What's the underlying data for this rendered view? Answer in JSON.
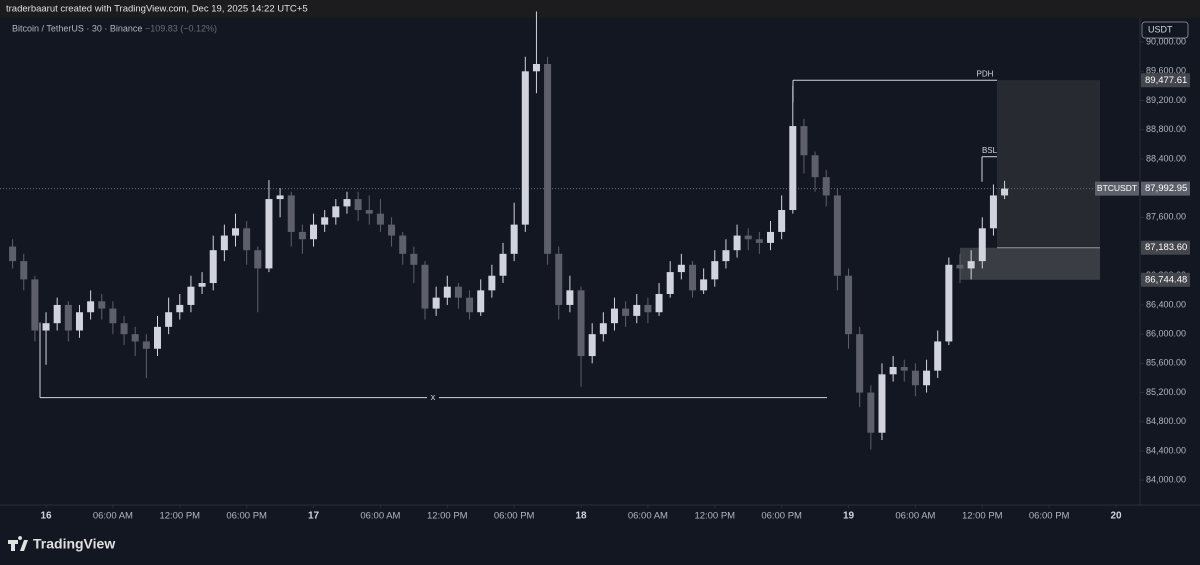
{
  "header": {
    "credit": "traderbaarut created with TradingView.com, Dec 19, 2025 14:22 UTC+5"
  },
  "chart_data": {
    "type": "candlestick",
    "title": "Bitcoin / TetherUS · 30 · Binance",
    "change": "−109.83 (−0.12%)",
    "currency": "USDT",
    "symbol": "BTCUSDT",
    "x": [
      -3,
      -2,
      -1,
      0,
      1,
      2,
      3,
      4,
      5,
      6,
      7,
      8,
      9,
      10,
      11,
      12,
      13,
      14,
      15,
      16,
      17,
      18,
      19,
      20,
      21,
      22,
      23,
      24,
      25,
      26,
      27,
      28,
      29,
      30,
      31,
      32,
      33,
      34,
      35,
      36,
      37,
      38,
      39,
      40,
      41,
      42,
      43,
      44,
      45,
      46,
      47,
      48,
      49,
      50,
      51,
      52,
      53,
      54,
      55,
      56,
      57,
      58,
      59,
      60,
      61,
      62,
      63,
      64,
      65,
      66,
      67,
      68,
      69,
      70,
      71,
      72,
      73,
      74,
      75,
      76,
      77,
      78,
      79,
      80,
      81,
      82,
      83,
      84,
      85,
      86
    ],
    "open": [
      87200,
      87000,
      86750,
      86050,
      86150,
      86400,
      86050,
      86300,
      86450,
      86350,
      86150,
      86000,
      85900,
      85800,
      86100,
      86300,
      86400,
      86650,
      86700,
      87150,
      87350,
      87450,
      87150,
      86900,
      87850,
      87900,
      87400,
      87300,
      87500,
      87600,
      87750,
      87850,
      87700,
      87650,
      87500,
      87350,
      87100,
      86950,
      86350,
      86500,
      86650,
      86500,
      86300,
      86600,
      86800,
      87100,
      87500,
      89600,
      89700,
      87100,
      86400,
      86600,
      85700,
      86000,
      86150,
      86350,
      86250,
      86400,
      86300,
      86550,
      86850,
      86950,
      86600,
      86750,
      87000,
      87150,
      87350,
      87300,
      87250,
      87400,
      87700,
      88850,
      88450,
      88150,
      87900,
      86800,
      86000,
      85200,
      84650,
      85450,
      85550,
      85500,
      85300,
      85500,
      85900,
      86950,
      86900,
      87000,
      87450,
      87900
    ],
    "high": [
      87300,
      87100,
      86800,
      86300,
      86500,
      86450,
      86400,
      86600,
      86550,
      86450,
      86250,
      86100,
      86000,
      86250,
      86500,
      86550,
      86800,
      86850,
      87350,
      87500,
      87650,
      87550,
      87200,
      88110,
      88000,
      87950,
      87500,
      87650,
      87700,
      87850,
      87950,
      87950,
      87900,
      87850,
      87600,
      87400,
      87200,
      87000,
      86650,
      86800,
      86700,
      86600,
      86750,
      86950,
      87250,
      87800,
      89800,
      90420,
      89800,
      87200,
      86800,
      86650,
      86150,
      86300,
      86500,
      86450,
      86550,
      86500,
      86700,
      87000,
      87100,
      87000,
      86900,
      87150,
      87300,
      87500,
      87450,
      87400,
      87550,
      87900,
      89400,
      88950,
      88500,
      88250,
      88000,
      86900,
      86100,
      85300,
      85600,
      85700,
      85650,
      85600,
      85650,
      86050,
      87050,
      87100,
      87150,
      87600,
      88050,
      88100
    ],
    "low": [
      86900,
      86600,
      85900,
      85580,
      86050,
      85900,
      85950,
      86200,
      86200,
      86000,
      85850,
      85700,
      85400,
      85700,
      86000,
      86200,
      86300,
      86550,
      86600,
      87000,
      87200,
      86950,
      86300,
      86850,
      87600,
      87200,
      87100,
      87200,
      87400,
      87500,
      87650,
      87550,
      87500,
      87400,
      87200,
      86950,
      86700,
      86200,
      86250,
      86400,
      86350,
      86200,
      86250,
      86500,
      86700,
      87000,
      87400,
      89300,
      86950,
      86200,
      86300,
      85280,
      85600,
      85900,
      86050,
      86100,
      86150,
      86150,
      86250,
      86500,
      86750,
      86500,
      86550,
      86650,
      86900,
      87050,
      87150,
      87100,
      87150,
      87300,
      87650,
      88200,
      87950,
      87750,
      86600,
      85800,
      85000,
      84420,
      84550,
      85350,
      85350,
      85150,
      85200,
      85400,
      85850,
      86700,
      86750,
      86900,
      87350,
      87850
    ],
    "close": [
      87000,
      86750,
      86050,
      86150,
      86400,
      86050,
      86300,
      86450,
      86350,
      86150,
      86000,
      85900,
      85800,
      86100,
      86300,
      86400,
      86650,
      86700,
      87150,
      87350,
      87450,
      87150,
      86900,
      87850,
      87900,
      87400,
      87300,
      87500,
      87600,
      87750,
      87850,
      87700,
      87650,
      87500,
      87350,
      87100,
      86950,
      86350,
      86500,
      86650,
      86500,
      86300,
      86600,
      86800,
      87100,
      87500,
      89600,
      89700,
      87100,
      86400,
      86600,
      85700,
      86000,
      86150,
      86350,
      86250,
      86400,
      86300,
      86550,
      86850,
      86950,
      86600,
      86750,
      87000,
      87150,
      87350,
      87300,
      87250,
      87400,
      87700,
      88850,
      88450,
      88150,
      87900,
      86800,
      86000,
      85200,
      84650,
      85450,
      85550,
      85500,
      85300,
      85500,
      85900,
      86950,
      86900,
      87000,
      87450,
      87900,
      87993
    ],
    "up_color": "#d1d4dc",
    "down_color": "#5d606b",
    "xlim": [
      -4.13,
      98.15
    ],
    "xticks": [
      {
        "value": 0,
        "label": "16"
      },
      {
        "value": 6,
        "label": "06:00 AM"
      },
      {
        "value": 12,
        "label": "12:00 PM"
      },
      {
        "value": 18,
        "label": "06:00 PM"
      },
      {
        "value": 24,
        "label": "17"
      },
      {
        "value": 30,
        "label": "06:00 AM"
      },
      {
        "value": 36,
        "label": "12:00 PM"
      },
      {
        "value": 42,
        "label": "06:00 PM"
      },
      {
        "value": 48,
        "label": "18"
      },
      {
        "value": 54,
        "label": "06:00 AM"
      },
      {
        "value": 60,
        "label": "12:00 PM"
      },
      {
        "value": 66,
        "label": "06:00 PM"
      },
      {
        "value": 72,
        "label": "19"
      },
      {
        "value": 78,
        "label": "06:00 AM"
      },
      {
        "value": 84,
        "label": "12:00 PM"
      },
      {
        "value": 90,
        "label": "06:00 PM"
      },
      {
        "value": 96,
        "label": "20"
      }
    ],
    "ylim": [
      83660,
      90330
    ],
    "yticks": [
      {
        "value": 84000,
        "label": "84,000.00"
      },
      {
        "value": 84400,
        "label": "84,400.00"
      },
      {
        "value": 84800,
        "label": "84,800.00"
      },
      {
        "value": 85200,
        "label": "85,200.00"
      },
      {
        "value": 85600,
        "label": "85,600.00"
      },
      {
        "value": 86000,
        "label": "86,000.00"
      },
      {
        "value": 86400,
        "label": "86,400.00"
      },
      {
        "value": 86800,
        "label": "86,800.00"
      },
      {
        "value": 87200,
        "label": "87,200.00"
      },
      {
        "value": 87600,
        "label": "87,600.00"
      },
      {
        "value": 88000,
        "label": "88,000.00"
      },
      {
        "value": 88400,
        "label": "88,400.00"
      },
      {
        "value": 88800,
        "label": "88,800.00"
      },
      {
        "value": 89200,
        "label": "89,200.00"
      },
      {
        "value": 89600,
        "label": "89,600.00"
      },
      {
        "value": 90000,
        "label": "90,000.00"
      }
    ],
    "price_labels": [
      {
        "value": 89477.61,
        "label": "89,477.61"
      },
      {
        "value": 87992.95,
        "label": "87,992.95"
      },
      {
        "value": 87183.6,
        "label": "87,183.60"
      },
      {
        "value": 86744.48,
        "label": "86,744.48"
      }
    ],
    "annotations": [
      {
        "label": "PDH",
        "value": 89477.61
      },
      {
        "label": "BSL",
        "value": 88430
      },
      {
        "label": "x",
        "value": 85130
      }
    ]
  },
  "footer": {
    "brand": "TradingView"
  }
}
